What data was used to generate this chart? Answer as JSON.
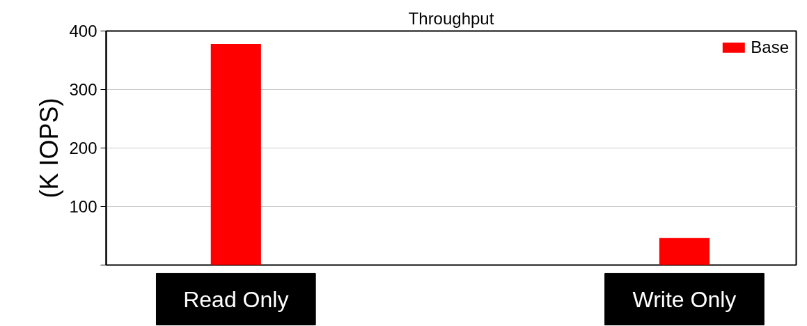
{
  "chart_data": {
    "type": "bar",
    "title": "Throughput",
    "ylabel": "(K IOPS)",
    "categories": [
      "Read Only",
      "Write Only"
    ],
    "series": [
      {
        "name": "Base",
        "color": "#ff0000",
        "values": [
          378,
          46
        ]
      }
    ],
    "ylim": [
      0,
      400
    ],
    "yticks": [
      {
        "value": 0,
        "label": null
      },
      100,
      200,
      300,
      400
    ],
    "grid": "y",
    "legend": "top right"
  }
}
